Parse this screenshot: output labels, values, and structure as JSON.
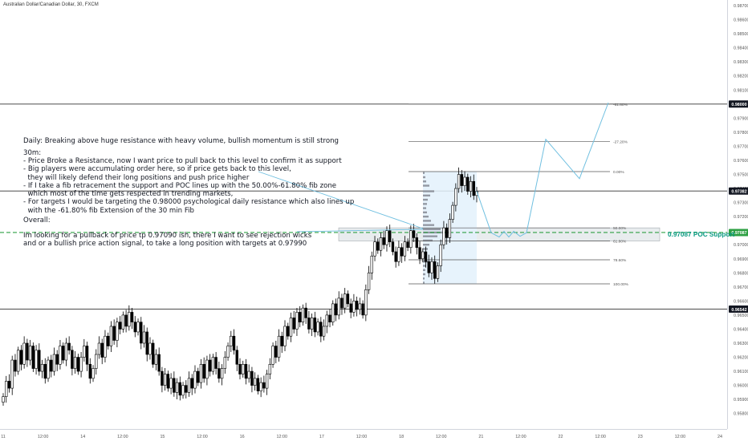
{
  "title": "Australian Dollar/Canadian Dollar, 30, FXCM",
  "notes": {
    "daily": "Daily: Breaking above huge resistance with heavy volume, bullish momentum is still strong",
    "m30_header": "30m:",
    "m30_lines": [
      "- Price Broke a Resistance, now I want price to pull back to this level to confirm it as support",
      "- Big players were accumulating order here, so if price gets back to this level,",
      "  they will likely defend their long positions and push price higher",
      "- If I take a fib retracement the support and POC lines up with the 50.00%-61.80% fib zone",
      "  which most of the time gets respected in trending markets,",
      "- For targets I would be targeting the 0.98000 psychological daily resistance which also lines up",
      "  with the -61.80% fib Extension of the 30 min Fib"
    ],
    "overall_header": "Overall:",
    "overall_lines": [
      "Im looking for a pullback of price tp 0.97090 ish, there I want to see rejection wicks",
      "and or a bullish price action signal, to take a long position with targets at 0.97990"
    ]
  },
  "poc_label": "0.97087 POC Support",
  "colors": {
    "up": "#26a69a",
    "down": "#ef5350",
    "candle": "#000000",
    "poc": "#2ea043",
    "projection": "#6fbfe0",
    "fib_zone": "#e6eaed",
    "price_tag": "#131722"
  },
  "chart_data": {
    "type": "candlestick",
    "y_axis": {
      "min": 0.9569,
      "max": 0.9874,
      "ticks": [
        0.957,
        0.958,
        0.959,
        0.96,
        0.961,
        0.962,
        0.963,
        0.964,
        0.965,
        0.966,
        0.967,
        0.968,
        0.969,
        0.97,
        0.971,
        0.972,
        0.973,
        0.974,
        0.975,
        0.976,
        0.977,
        0.978,
        0.979,
        0.98,
        0.981,
        0.982,
        0.983,
        0.984,
        0.985,
        0.986,
        0.987
      ],
      "tick_labels": [
        "0.95700",
        "0.95800",
        "0.95900",
        "0.96000",
        "0.96100",
        "0.96200",
        "0.96300",
        "0.96400",
        "0.96500",
        "0.96600",
        "0.96700",
        "0.96800",
        "0.96900",
        "0.97000",
        "0.97100",
        "0.97200",
        "0.97300",
        "0.97400",
        "0.97500",
        "0.97600",
        "0.97700",
        "0.97800",
        "0.97900",
        "0.98000",
        "0.98100",
        "0.98200",
        "0.98300",
        "0.98400",
        "0.98500",
        "0.98600",
        "0.98700"
      ]
    },
    "x_axis": {
      "labels": [
        "11",
        "12:00",
        "14",
        "12:00",
        "15",
        "12:00",
        "16",
        "12:00",
        "17",
        "12:00",
        "18",
        "12:00",
        "21",
        "12:00",
        "22",
        "12:00",
        "23",
        "12:00",
        "24"
      ]
    },
    "price_tags": [
      {
        "value": 0.98,
        "label": "0.98000"
      },
      {
        "value": 0.97382,
        "label": "0.97382"
      },
      {
        "value": 0.97087,
        "label": "0.97087"
      },
      {
        "value": 0.96542,
        "label": "0.96542"
      }
    ],
    "horizontal_levels": [
      0.98,
      0.97382,
      0.96542
    ],
    "poc_level": 0.97087,
    "fib_levels": [
      {
        "label": "-61.80%",
        "value": 0.98
      },
      {
        "label": "-27.20%",
        "value": 0.97734
      },
      {
        "label": "0.00%",
        "value": 0.9752
      },
      {
        "label": "50.00%",
        "value": 0.9712
      },
      {
        "label": "61.80%",
        "value": 0.97027
      },
      {
        "label": "78.60%",
        "value": 0.96893
      },
      {
        "label": "100.00%",
        "value": 0.96722
      }
    ],
    "fib_zone": [
      0.97027,
      0.9712
    ],
    "projection_path": [
      0.9738,
      0.97085,
      0.97055,
      0.97095,
      0.97055,
      0.97095,
      0.9706,
      0.97085,
      0.9775,
      0.9747,
      0.9801
    ],
    "closes": [
      0.9592,
      0.9603,
      0.9598,
      0.9618,
      0.961,
      0.9625,
      0.9615,
      0.963,
      0.9618,
      0.9628,
      0.9612,
      0.9625,
      0.961,
      0.9615,
      0.9605,
      0.9618,
      0.961,
      0.9622,
      0.9615,
      0.9628,
      0.9618,
      0.963,
      0.9625,
      0.9612,
      0.962,
      0.961,
      0.962,
      0.9628,
      0.9615,
      0.9605,
      0.9612,
      0.9622,
      0.963,
      0.962,
      0.9635,
      0.9628,
      0.9642,
      0.9632,
      0.9645,
      0.964,
      0.965,
      0.9642,
      0.9652,
      0.9645,
      0.9638,
      0.9645,
      0.963,
      0.9638,
      0.9622,
      0.963,
      0.9615,
      0.9622,
      0.961,
      0.96,
      0.9608,
      0.9598,
      0.9605,
      0.9595,
      0.9602,
      0.9593,
      0.96,
      0.9595,
      0.9605,
      0.9598,
      0.961,
      0.9602,
      0.9615,
      0.9605,
      0.9618,
      0.961,
      0.962,
      0.9612,
      0.9605,
      0.9612,
      0.962,
      0.9628,
      0.9635,
      0.9625,
      0.9615,
      0.9608,
      0.9615,
      0.9605,
      0.961,
      0.96,
      0.9605,
      0.9596,
      0.9602,
      0.9598,
      0.9608,
      0.9615,
      0.9628,
      0.962,
      0.9635,
      0.9628,
      0.9642,
      0.9635,
      0.9648,
      0.964,
      0.9652,
      0.9645,
      0.9655,
      0.9648,
      0.964,
      0.9648,
      0.9638,
      0.9645,
      0.9635,
      0.9642,
      0.965,
      0.9645,
      0.9658,
      0.965,
      0.9662,
      0.9655,
      0.9665,
      0.9658,
      0.9652,
      0.966,
      0.9654,
      0.9658,
      0.965,
      0.9668,
      0.968,
      0.9692,
      0.9702,
      0.9696,
      0.9705,
      0.97,
      0.971,
      0.9702,
      0.9695,
      0.9688,
      0.9698,
      0.9692,
      0.9702,
      0.9698,
      0.971,
      0.9705,
      0.9698,
      0.969,
      0.9695,
      0.9688,
      0.968,
      0.9688,
      0.9676,
      0.9685,
      0.97,
      0.9712,
      0.9705,
      0.9718,
      0.9728,
      0.974,
      0.975,
      0.9742,
      0.9748,
      0.9738,
      0.9745,
      0.9735,
      0.9738
    ]
  }
}
